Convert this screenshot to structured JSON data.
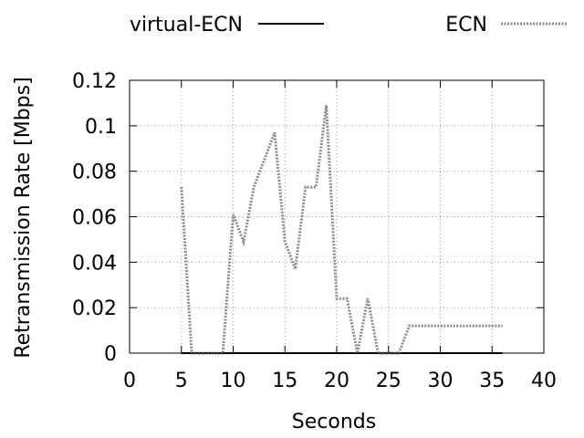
{
  "chart_data": {
    "type": "line",
    "xlabel": "Seconds",
    "ylabel": "Retransmission Rate [Mbps]",
    "xlim": [
      0,
      40
    ],
    "ylim": [
      0,
      0.12
    ],
    "x_ticks": [
      0,
      5,
      10,
      15,
      20,
      25,
      30,
      35,
      40
    ],
    "y_ticks": [
      0,
      0.02,
      0.04,
      0.06,
      0.08,
      0.1,
      0.12
    ],
    "x_tick_labels": [
      "0",
      "5",
      "10",
      "15",
      "20",
      "25",
      "30",
      "35",
      "40"
    ],
    "y_tick_labels": [
      "0",
      "0.02",
      "0.04",
      "0.06",
      "0.08",
      "0.1",
      "0.12"
    ],
    "grid": true,
    "legend_position": "top",
    "series": [
      {
        "name": "virtual-ECN",
        "color": "#000000",
        "style": "solid",
        "x": [
          5,
          10,
          15,
          20,
          25,
          30,
          36
        ],
        "y": [
          0,
          0,
          0,
          0,
          0,
          0,
          0
        ]
      },
      {
        "name": "ECN",
        "color": "#8c8c8c",
        "style": "dotted",
        "x": [
          5,
          6,
          7,
          8,
          9,
          10,
          11,
          12,
          13,
          14,
          15,
          16,
          17,
          18,
          19,
          20,
          21,
          22,
          23,
          24,
          25,
          26,
          27,
          28,
          29,
          30,
          31,
          32,
          33,
          34,
          35,
          36
        ],
        "y": [
          0.073,
          0,
          0,
          0,
          0,
          0.061,
          0.049,
          0.073,
          0.085,
          0.097,
          0.049,
          0.037,
          0.073,
          0.073,
          0.109,
          0.024,
          0.024,
          0,
          0.024,
          0,
          0,
          0,
          0.012,
          0.012,
          0.012,
          0.012,
          0.012,
          0.012,
          0.012,
          0.012,
          0.012,
          0.012
        ]
      }
    ]
  }
}
